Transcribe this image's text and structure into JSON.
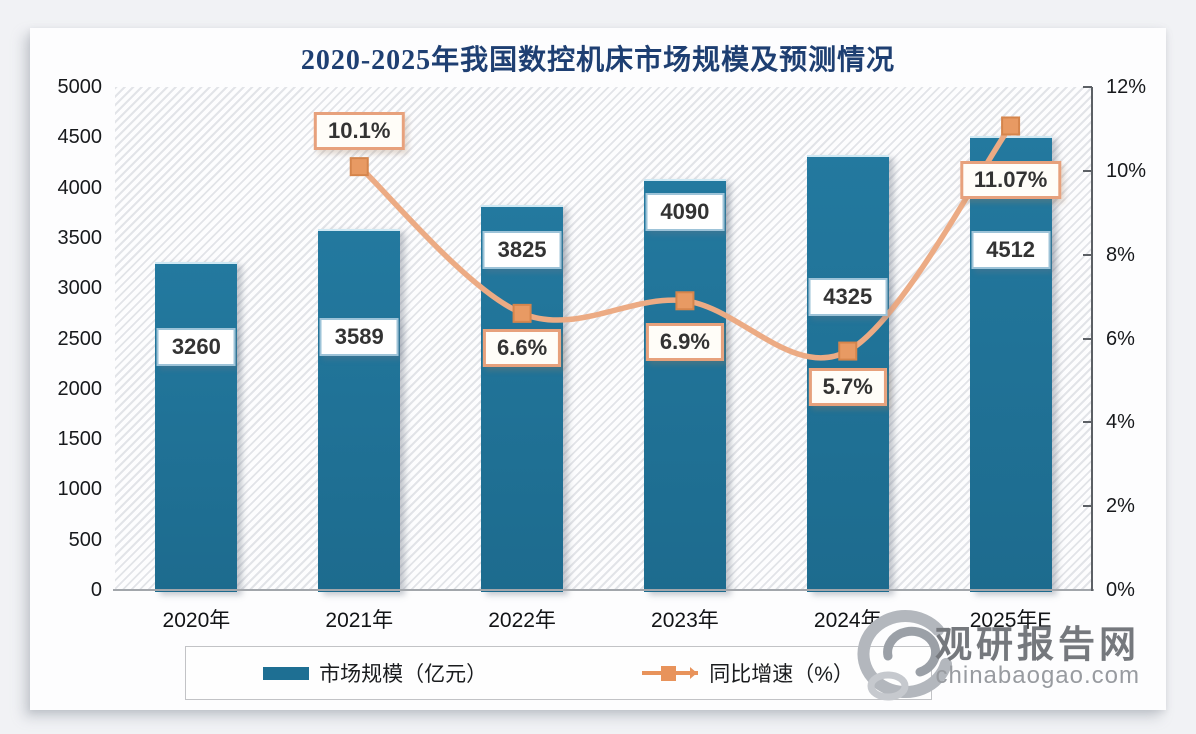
{
  "title": "2020-2025年我国数控机床市场规模及预测情况",
  "watermark": {
    "name": "观研报告网",
    "domain": "chinabaogao.com"
  },
  "legend": {
    "items": [
      {
        "label": "市场规模（亿元）",
        "swatch": "bar",
        "color": "#1e6f93"
      },
      {
        "label": "同比增速（%）",
        "swatch": "line-square-marker",
        "color": "#e8a57f"
      }
    ]
  },
  "colors": {
    "bar": "#1e6f93",
    "bar_edge": "#cfe8f3",
    "line": "#ecab84",
    "marker_fill": "#e89a63",
    "marker_stroke": "#d5854c",
    "title_text": "#1e3f72",
    "value_box_border": "#9dc3d8",
    "percent_box_border": "#e7a17c"
  },
  "chart_data": {
    "type": "bar+line-combo",
    "title": "2020-2025年我国数控机床市场规模及预测情况",
    "categories": [
      "2020年",
      "2021年",
      "2022年",
      "2023年",
      "2024年",
      "2025年E"
    ],
    "series": [
      {
        "name": "市场规模（亿元）",
        "type": "bar",
        "axis": "left",
        "values": [
          3260,
          3589,
          3825,
          4090,
          4325,
          4512
        ],
        "labels": [
          "3260",
          "3589",
          "3825",
          "4090",
          "4325",
          "4512"
        ],
        "color": "#1e6f93"
      },
      {
        "name": "同比增速（%）",
        "type": "line",
        "axis": "right",
        "values": [
          null,
          10.1,
          6.6,
          6.9,
          5.7,
          11.07
        ],
        "labels": [
          "",
          "10.1%",
          "6.6%",
          "6.9%",
          "5.7%",
          "11.07%"
        ],
        "color": "#ecab84",
        "marker": "square"
      }
    ],
    "left_axis": {
      "min": 0,
      "max": 5000,
      "step": 500,
      "tick_labels": [
        "0",
        "500",
        "1000",
        "1500",
        "2000",
        "2500",
        "3000",
        "3500",
        "4000",
        "4500",
        "5000"
      ]
    },
    "right_axis": {
      "min": 0,
      "max": 12,
      "step": 2,
      "tick_labels": [
        "0%",
        "2%",
        "4%",
        "6%",
        "8%",
        "10%",
        "12%"
      ]
    },
    "grid": false,
    "legend_position": "bottom",
    "plot_background": "diagonal-hatch"
  }
}
